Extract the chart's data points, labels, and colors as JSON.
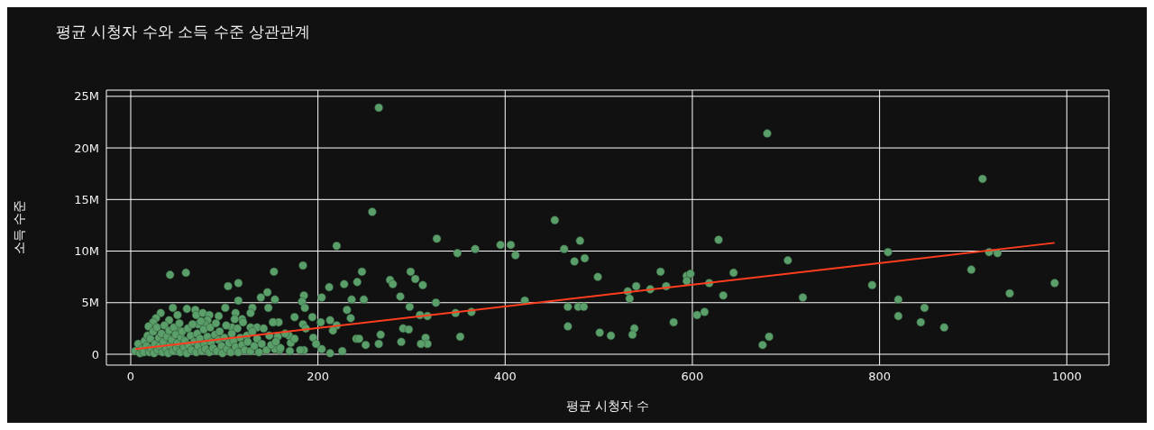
{
  "chart_data": {
    "type": "scatter",
    "title": "평균 시청자 수와 소득 수준 상관관계",
    "xlabel": "평균 시청자 수",
    "ylabel": "소득 수준",
    "xlim": [
      -26,
      1045
    ],
    "xticks": [
      0,
      200,
      400,
      600,
      800,
      1000
    ],
    "ylim": [
      -1050000,
      25600000
    ],
    "yticks": [
      0,
      {
        "value": 5000000,
        "label": "5M"
      },
      {
        "value": 10000000,
        "label": "10M"
      },
      {
        "value": 15000000,
        "label": "15M"
      },
      {
        "value": 20000000,
        "label": "20M"
      },
      {
        "value": 25000000,
        "label": "25M"
      }
    ],
    "grid": true,
    "series": [
      {
        "color": "#5a9e6a",
        "marker": "circle",
        "x": [
          265,
          680,
          910,
          258,
          453,
          327,
          628,
          480,
          220,
          395,
          406,
          368,
          463,
          411,
          809,
          917,
          926,
          702,
          349,
          485,
          474,
          184,
          153,
          247,
          299,
          242,
          228,
          212,
          277,
          280,
          304,
          312,
          204,
          236,
          249,
          288,
          326,
          298,
          231,
          235,
          185,
          183,
          186,
          175,
          194,
          309,
          317,
          347,
          364,
          421,
          352,
          291,
          297,
          267,
          213,
          220,
          216,
          203,
          241,
          244,
          251,
          265,
          289,
          315,
          317,
          310,
          226,
          213,
          204,
          195,
          198,
          169,
          171,
          157,
          152,
          158,
          154,
          185,
          181,
          159,
          154,
          184,
          187,
          499,
          644,
          566,
          594,
          598,
          594,
          618,
          572,
          555,
          540,
          531,
          533,
          633,
          718,
          467,
          478,
          484,
          605,
          613,
          467,
          580,
          538,
          536,
          501,
          513,
          682,
          675,
          898,
          792,
          987,
          939,
          820,
          848,
          820,
          844,
          869,
          42,
          59,
          104,
          115,
          146,
          139,
          115,
          45,
          60,
          32,
          69,
          70,
          77,
          84,
          101,
          94,
          112,
          130,
          128,
          147,
          119,
          111,
          82,
          79,
          27,
          24,
          19,
          41,
          50,
          72,
          52,
          108,
          128,
          135,
          152,
          5,
          8,
          10,
          12,
          14,
          15,
          17,
          18,
          20,
          21,
          22,
          24,
          25,
          26,
          28,
          29,
          30,
          31,
          33,
          34,
          35,
          36,
          38,
          39,
          40,
          41,
          42,
          44,
          45,
          46,
          48,
          49,
          50,
          52,
          53,
          54,
          55,
          57,
          58,
          60,
          61,
          62,
          64,
          65,
          66,
          68,
          70,
          71,
          72,
          74,
          75,
          76,
          78,
          79,
          80,
          82,
          84,
          85,
          86,
          88,
          90,
          91,
          92,
          94,
          95,
          97,
          98,
          100,
          102,
          103,
          105,
          107,
          108,
          110,
          112,
          114,
          115,
          117,
          119,
          120,
          122,
          124,
          125,
          128,
          130,
          132,
          135,
          137,
          140,
          142,
          145,
          148,
          150,
          155,
          160,
          165,
          170,
          175
        ],
        "values": [
          23900000,
          21400000,
          17000000,
          13800000,
          13000000,
          11200000,
          11100000,
          11000000,
          10500000,
          10600000,
          10600000,
          10200000,
          10200000,
          9600000,
          9900000,
          9900000,
          9800000,
          9100000,
          9800000,
          9300000,
          9000000,
          8600000,
          8000000,
          8000000,
          8000000,
          7000000,
          6800000,
          6500000,
          7200000,
          6800000,
          7300000,
          6700000,
          5500000,
          5300000,
          5300000,
          5600000,
          5000000,
          4600000,
          4300000,
          3500000,
          5700000,
          5100000,
          4500000,
          3600000,
          3600000,
          3800000,
          3700000,
          4000000,
          4100000,
          5200000,
          1700000,
          2500000,
          2400000,
          1900000,
          3300000,
          2800000,
          2300000,
          3100000,
          1500000,
          1500000,
          900000,
          1000000,
          1200000,
          1600000,
          1000000,
          1000000,
          300000,
          100000,
          500000,
          1600000,
          1000000,
          1800000,
          1100000,
          1700000,
          3100000,
          3100000,
          5300000,
          400000,
          400000,
          400000,
          500000,
          2900000,
          2500000,
          7500000,
          7900000,
          8000000,
          7600000,
          7800000,
          7100000,
          6900000,
          6600000,
          6300000,
          6600000,
          6100000,
          5400000,
          5700000,
          5500000,
          4600000,
          4600000,
          4600000,
          3800000,
          4100000,
          2700000,
          3100000,
          2500000,
          1900000,
          2100000,
          1800000,
          1700000,
          900000,
          8200000,
          6700000,
          6900000,
          5900000,
          5300000,
          4500000,
          3700000,
          3100000,
          2600000,
          7700000,
          7900000,
          6600000,
          6900000,
          6000000,
          5500000,
          5200000,
          4500000,
          4400000,
          4000000,
          4300000,
          3800000,
          4000000,
          3800000,
          4500000,
          3700000,
          4000000,
          4500000,
          4000000,
          4500000,
          3400000,
          3400000,
          3300000,
          2900000,
          3500000,
          3100000,
          2700000,
          3300000,
          3800000,
          2900000,
          2300000,
          2600000,
          2600000,
          2600000,
          3100000,
          300000,
          1000000,
          100000,
          500000,
          200000,
          1300000,
          800000,
          1800000,
          200000,
          1500000,
          600000,
          2200000,
          100000,
          1000000,
          2600000,
          400000,
          1600000,
          800000,
          2000000,
          200000,
          1200000,
          2800000,
          500000,
          1700000,
          100000,
          2300000,
          900000,
          1400000,
          300000,
          2600000,
          1900000,
          600000,
          1100000,
          3000000,
          200000,
          1600000,
          2200000,
          700000,
          1300000,
          100000,
          2500000,
          900000,
          1800000,
          400000,
          2900000,
          1200000,
          200000,
          2000000,
          800000,
          1500000,
          3200000,
          300000,
          2400000,
          1000000,
          500000,
          1700000,
          200000,
          2600000,
          1200000,
          600000,
          1900000,
          3000000,
          300000,
          1400000,
          2200000,
          800000,
          100000,
          1600000,
          2800000,
          500000,
          1100000,
          200000,
          2000000,
          1300000,
          700000,
          2500000,
          200000,
          1600000,
          900000,
          3100000,
          400000,
          1800000,
          1200000,
          300000,
          2200000,
          800000,
          1500000,
          200000,
          1000000,
          2500000,
          400000,
          1800000,
          900000,
          1200000,
          600000,
          2000000,
          300000,
          1500000
        ]
      },
      {
        "type": "line",
        "color": "#ff3d1f",
        "x": [
          5,
          987
        ],
        "values": [
          500000,
          10800000
        ]
      }
    ]
  }
}
